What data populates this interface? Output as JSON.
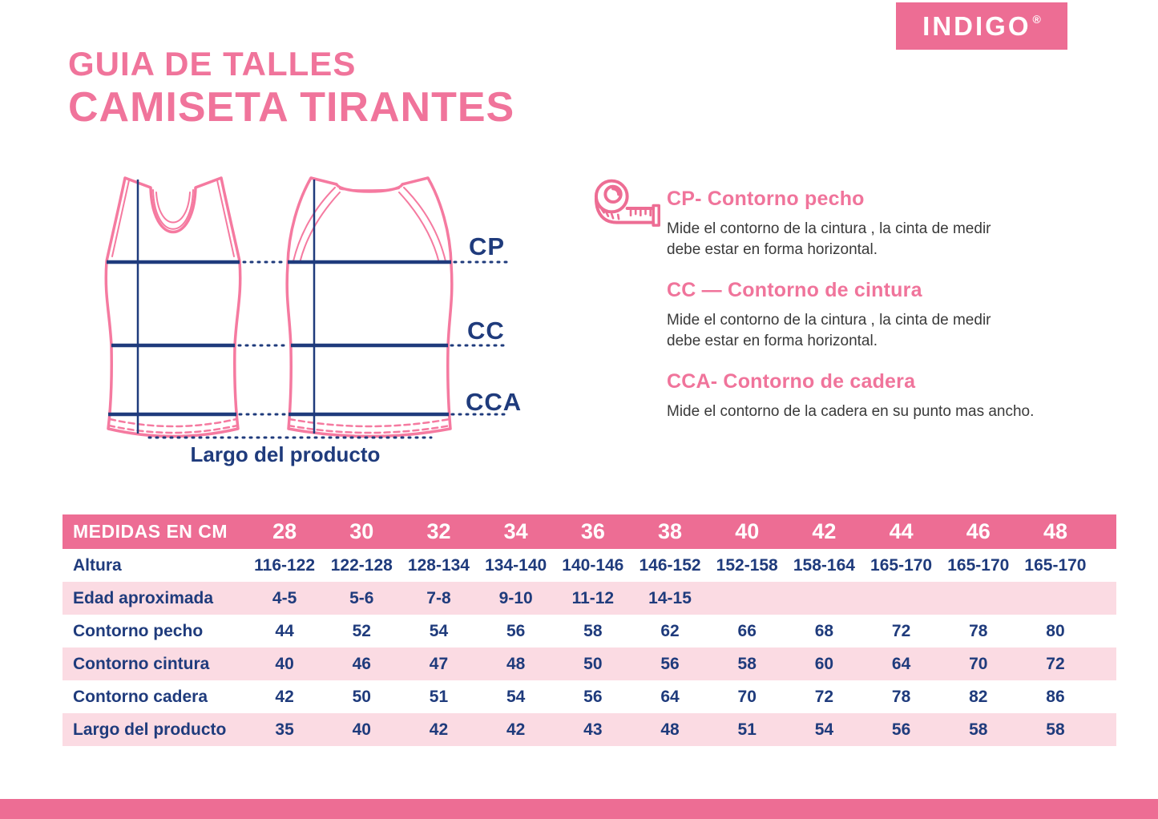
{
  "brand": {
    "logo_text": "INDIGO",
    "registered": "®"
  },
  "header": {
    "title_line1": "GUIA DE TALLES",
    "title_line2": "CAMISETA TIRANTES"
  },
  "diagram": {
    "labels": {
      "cp": "CP",
      "cc": "CC",
      "cca": "CCA"
    },
    "caption": "Largo del producto"
  },
  "definitions": [
    {
      "heading": "CP- Contorno pecho",
      "body": "Mide el contorno de la cintura , la cinta de medir\ndebe estar en forma horizontal."
    },
    {
      "heading": "CC — Contorno de cintura",
      "body": "Mide el contorno de la cintura , la cinta de medir\ndebe estar en forma horizontal."
    },
    {
      "heading": "CCA- Contorno de cadera",
      "body": "Mide el contorno de la cadera en su punto mas ancho."
    }
  ],
  "table": {
    "header_label": "MEDIDAS EN CM",
    "sizes": [
      "28",
      "30",
      "32",
      "34",
      "36",
      "38",
      "40",
      "42",
      "44",
      "46",
      "48"
    ],
    "rows": [
      {
        "label": "Altura",
        "shaded": false,
        "values": [
          "116-122",
          "122-128",
          "128-134",
          "134-140",
          "140-146",
          "146-152",
          "152-158",
          "158-164",
          "165-170",
          "165-170",
          "165-170"
        ]
      },
      {
        "label": "Edad aproximada",
        "shaded": true,
        "values": [
          "4-5",
          "5-6",
          "7-8",
          "9-10",
          "11-12",
          "14-15",
          "",
          "",
          "",
          "",
          ""
        ]
      },
      {
        "label": "Contorno pecho",
        "shaded": false,
        "values": [
          "44",
          "52",
          "54",
          "56",
          "58",
          "62",
          "66",
          "68",
          "72",
          "78",
          "80"
        ]
      },
      {
        "label": "Contorno cintura",
        "shaded": true,
        "values": [
          "40",
          "46",
          "47",
          "48",
          "50",
          "56",
          "58",
          "60",
          "64",
          "70",
          "72"
        ]
      },
      {
        "label": "Contorno cadera",
        "shaded": false,
        "values": [
          "42",
          "50",
          "51",
          "54",
          "56",
          "64",
          "70",
          "72",
          "78",
          "82",
          "86"
        ]
      },
      {
        "label": "Largo del producto",
        "shaded": true,
        "values": [
          "35",
          "40",
          "42",
          "42",
          "43",
          "48",
          "51",
          "54",
          "56",
          "58",
          "58"
        ]
      }
    ]
  },
  "colors": {
    "brand_pink": "#ED6D94",
    "light_pink": "#FBDBE3",
    "navy": "#1F3B7C",
    "diagram_pink": "#F57AA0",
    "body_text": "#3A3A3A"
  }
}
